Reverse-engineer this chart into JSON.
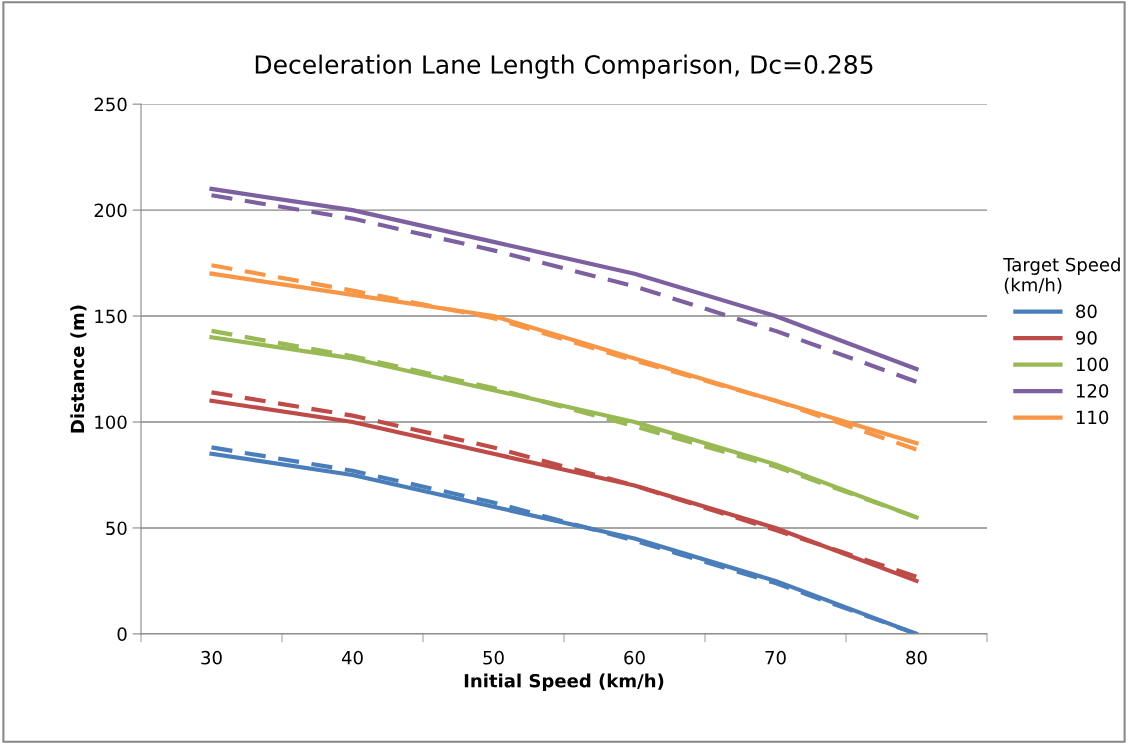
{
  "chart_data": {
    "type": "line",
    "title": "Deceleration Lane Length Comparison, Dc=0.285",
    "xlabel": "Initial Speed (km/h)",
    "ylabel": "Distance (m)",
    "legend_title": "Target Speed\n(km/h)",
    "x": [
      30,
      40,
      50,
      60,
      70,
      80
    ],
    "xlim": [
      25,
      85
    ],
    "xticks": [
      {
        "value": 25,
        "label": null
      },
      30,
      {
        "value": 35,
        "label": null
      },
      40,
      {
        "value": 45,
        "label": null
      },
      50,
      {
        "value": 55,
        "label": null
      },
      60,
      {
        "value": 65,
        "label": null
      },
      70,
      {
        "value": 75,
        "label": null
      },
      80,
      {
        "value": 85,
        "label": null
      }
    ],
    "ylim": [
      0,
      250
    ],
    "yticks": [
      0,
      50,
      100,
      150,
      200,
      250
    ],
    "grid": "y",
    "legend": "right",
    "marker": "none",
    "series": [
      {
        "name": "80",
        "color": "#4a7ebb",
        "values": [
          85,
          75,
          60,
          45,
          25,
          0
        ],
        "line_style": "solid"
      },
      {
        "name": "90",
        "color": "#be4b48",
        "values": [
          110,
          100,
          85,
          70,
          50,
          25
        ],
        "line_style": "solid"
      },
      {
        "name": "100",
        "color": "#98b954",
        "values": [
          140,
          130,
          115,
          100,
          80,
          55
        ],
        "line_style": "solid"
      },
      {
        "name": "120",
        "color": "#7d60a0",
        "values": [
          210,
          200,
          185,
          170,
          150,
          125
        ],
        "line_style": "solid"
      },
      {
        "name": "110",
        "color": "#f79646",
        "values": [
          170,
          160,
          150,
          130,
          110,
          90
        ],
        "line_style": "solid"
      },
      {
        "color": "#4a7ebb",
        "values": [
          88,
          77,
          62,
          44,
          24,
          0
        ],
        "line_style": "dashed"
      },
      {
        "color": "#be4b48",
        "values": [
          114,
          103,
          88,
          70,
          49,
          27
        ],
        "line_style": "dashed"
      },
      {
        "color": "#98b954",
        "values": [
          143,
          131,
          116,
          98,
          79,
          55
        ],
        "line_style": "dashed"
      },
      {
        "color": "#7d60a0",
        "values": [
          207,
          196,
          181,
          164,
          143,
          119
        ],
        "line_style": "dashed"
      },
      {
        "color": "#f79646",
        "values": [
          174,
          162,
          149,
          129,
          110,
          87
        ],
        "line_style": "dashed"
      }
    ]
  }
}
